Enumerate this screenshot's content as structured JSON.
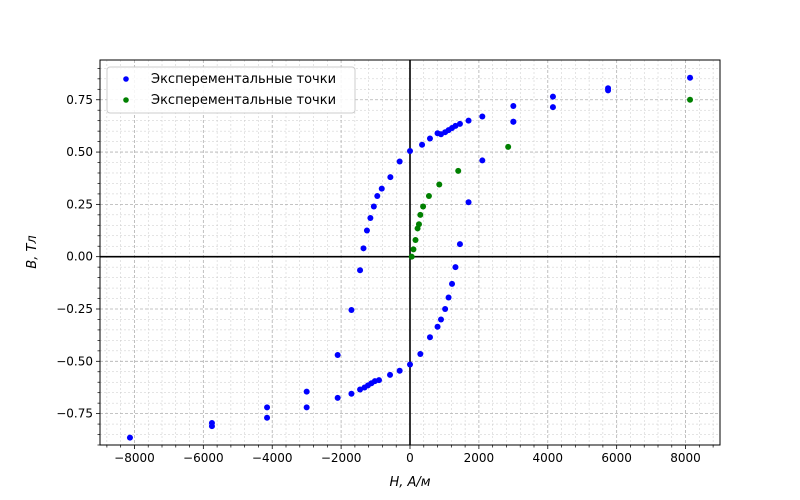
{
  "chart_data": {
    "type": "scatter",
    "title": "",
    "xlabel": "H, А/м",
    "ylabel": "B, Тл",
    "xlim": [
      -9000,
      9000
    ],
    "ylim": [
      -0.9,
      0.94
    ],
    "xticks": [
      -8000,
      -6000,
      -4000,
      -2000,
      0,
      2000,
      4000,
      6000,
      8000
    ],
    "xtick_labels": [
      "−8000",
      "−6000",
      "−4000",
      "−2000",
      "0",
      "2000",
      "4000",
      "6000",
      "8000"
    ],
    "yticks": [
      -0.75,
      -0.5,
      -0.25,
      0.0,
      0.25,
      0.5,
      0.75
    ],
    "ytick_labels": [
      "−0.75",
      "−0.50",
      "−0.25",
      "0.00",
      "0.25",
      "0.50",
      "0.75"
    ],
    "grid": true,
    "legend_position": "top-left",
    "series": [
      {
        "name": "Эксперементальные точки",
        "color": "#0000ff",
        "points": [
          [
            8130,
            0.855
          ],
          [
            5750,
            0.805
          ],
          [
            5750,
            0.795
          ],
          [
            4150,
            0.765
          ],
          [
            4150,
            0.715
          ],
          [
            3000,
            0.72
          ],
          [
            3000,
            0.645
          ],
          [
            2100,
            0.67
          ],
          [
            1700,
            0.65
          ],
          [
            1450,
            0.635
          ],
          [
            1320,
            0.625
          ],
          [
            1220,
            0.615
          ],
          [
            1120,
            0.605
          ],
          [
            1020,
            0.595
          ],
          [
            900,
            0.585
          ],
          [
            800,
            0.59
          ],
          [
            580,
            0.565
          ],
          [
            350,
            0.535
          ],
          [
            0,
            0.505
          ],
          [
            -300,
            0.455
          ],
          [
            -570,
            0.38
          ],
          [
            -820,
            0.325
          ],
          [
            -950,
            0.29
          ],
          [
            -1050,
            0.24
          ],
          [
            -1150,
            0.185
          ],
          [
            -1250,
            0.125
          ],
          [
            -1350,
            0.04
          ],
          [
            -1450,
            -0.065
          ],
          [
            -1700,
            -0.255
          ],
          [
            -2100,
            -0.47
          ],
          [
            -2100,
            -0.675
          ],
          [
            -1700,
            -0.655
          ],
          [
            -1450,
            -0.635
          ],
          [
            -1320,
            -0.625
          ],
          [
            -1220,
            -0.615
          ],
          [
            -1120,
            -0.605
          ],
          [
            -1020,
            -0.595
          ],
          [
            -900,
            -0.59
          ],
          [
            -580,
            -0.565
          ],
          [
            -300,
            -0.545
          ],
          [
            0,
            -0.515
          ],
          [
            -3000,
            -0.645
          ],
          [
            -3000,
            -0.72
          ],
          [
            -4150,
            -0.72
          ],
          [
            -4150,
            -0.77
          ],
          [
            -5750,
            -0.795
          ],
          [
            -5750,
            -0.81
          ],
          [
            -8130,
            -0.865
          ],
          [
            2100,
            0.46
          ],
          [
            1700,
            0.26
          ],
          [
            1450,
            0.06
          ],
          [
            1320,
            -0.05
          ],
          [
            1220,
            -0.13
          ],
          [
            1120,
            -0.195
          ],
          [
            1020,
            -0.25
          ],
          [
            900,
            -0.3
          ],
          [
            800,
            -0.335
          ],
          [
            580,
            -0.385
          ],
          [
            300,
            -0.465
          ],
          [
            3000,
            0.645
          ]
        ]
      },
      {
        "name": "Эксперементальные точки",
        "color": "#008000",
        "points": [
          [
            8130,
            0.75
          ],
          [
            2850,
            0.525
          ],
          [
            1400,
            0.41
          ],
          [
            850,
            0.345
          ],
          [
            550,
            0.29
          ],
          [
            380,
            0.24
          ],
          [
            300,
            0.2
          ],
          [
            260,
            0.155
          ],
          [
            220,
            0.135
          ],
          [
            160,
            0.08
          ],
          [
            100,
            0.035
          ],
          [
            50,
            0.0
          ]
        ]
      }
    ]
  }
}
